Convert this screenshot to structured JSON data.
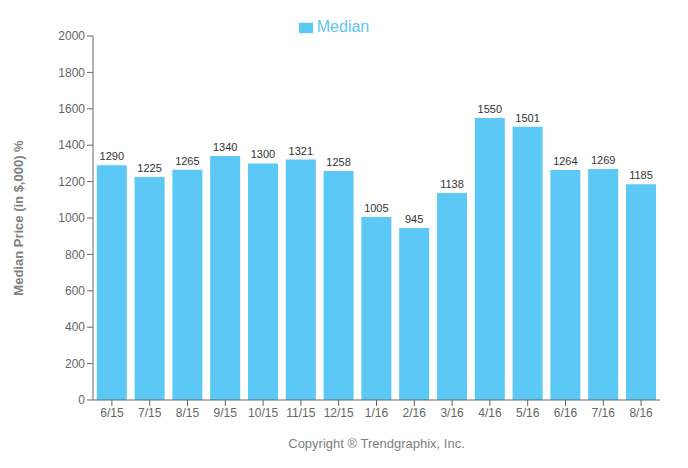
{
  "chart_data": {
    "type": "bar",
    "categories": [
      "6/15",
      "7/15",
      "8/15",
      "9/15",
      "10/15",
      "11/15",
      "12/15",
      "1/16",
      "2/16",
      "3/16",
      "4/16",
      "5/16",
      "6/16",
      "7/16",
      "8/16"
    ],
    "series": [
      {
        "name": "Median",
        "color": "#5BC8F5",
        "values": [
          1290,
          1225,
          1265,
          1340,
          1300,
          1321,
          1258,
          1005,
          945,
          1138,
          1550,
          1501,
          1264,
          1269,
          1185
        ]
      }
    ],
    "xlabel": "Copyright ® Trendgraphix, Inc.",
    "ylabel": "Median Price (in $,000) %",
    "ylim": [
      0,
      2000
    ],
    "yticks": [
      0,
      200,
      400,
      600,
      800,
      1000,
      1200,
      1400,
      1600,
      1800,
      2000
    ],
    "grid": false,
    "legend": "top",
    "data_labels": true
  }
}
